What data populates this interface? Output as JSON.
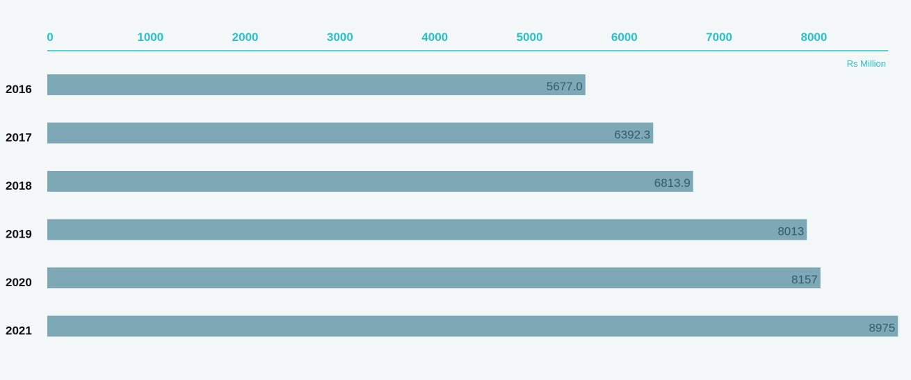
{
  "chart_data": {
    "type": "bar",
    "orientation": "horizontal",
    "categories": [
      "2016",
      "2017",
      "2018",
      "2019",
      "2020",
      "2021"
    ],
    "values": [
      5677.0,
      6392.3,
      6813.9,
      8013,
      8157,
      8975
    ],
    "value_labels": [
      "5677.0",
      "6392.3",
      "6813.9",
      "8013",
      "8157",
      "8975"
    ],
    "x_ticks": [
      "0",
      "1000",
      "2000",
      "3000",
      "4000",
      "5000",
      "6000",
      "7000",
      "8000"
    ],
    "unit_label": "Rs Million",
    "axis_position": "top",
    "grid": false,
    "legend": "none",
    "colors": {
      "bar": "#7ea8b6",
      "axis": "#2bc0c9",
      "value_text": "#2f5d6a",
      "category_text": "#111111",
      "background": "#f3f7f8"
    }
  }
}
